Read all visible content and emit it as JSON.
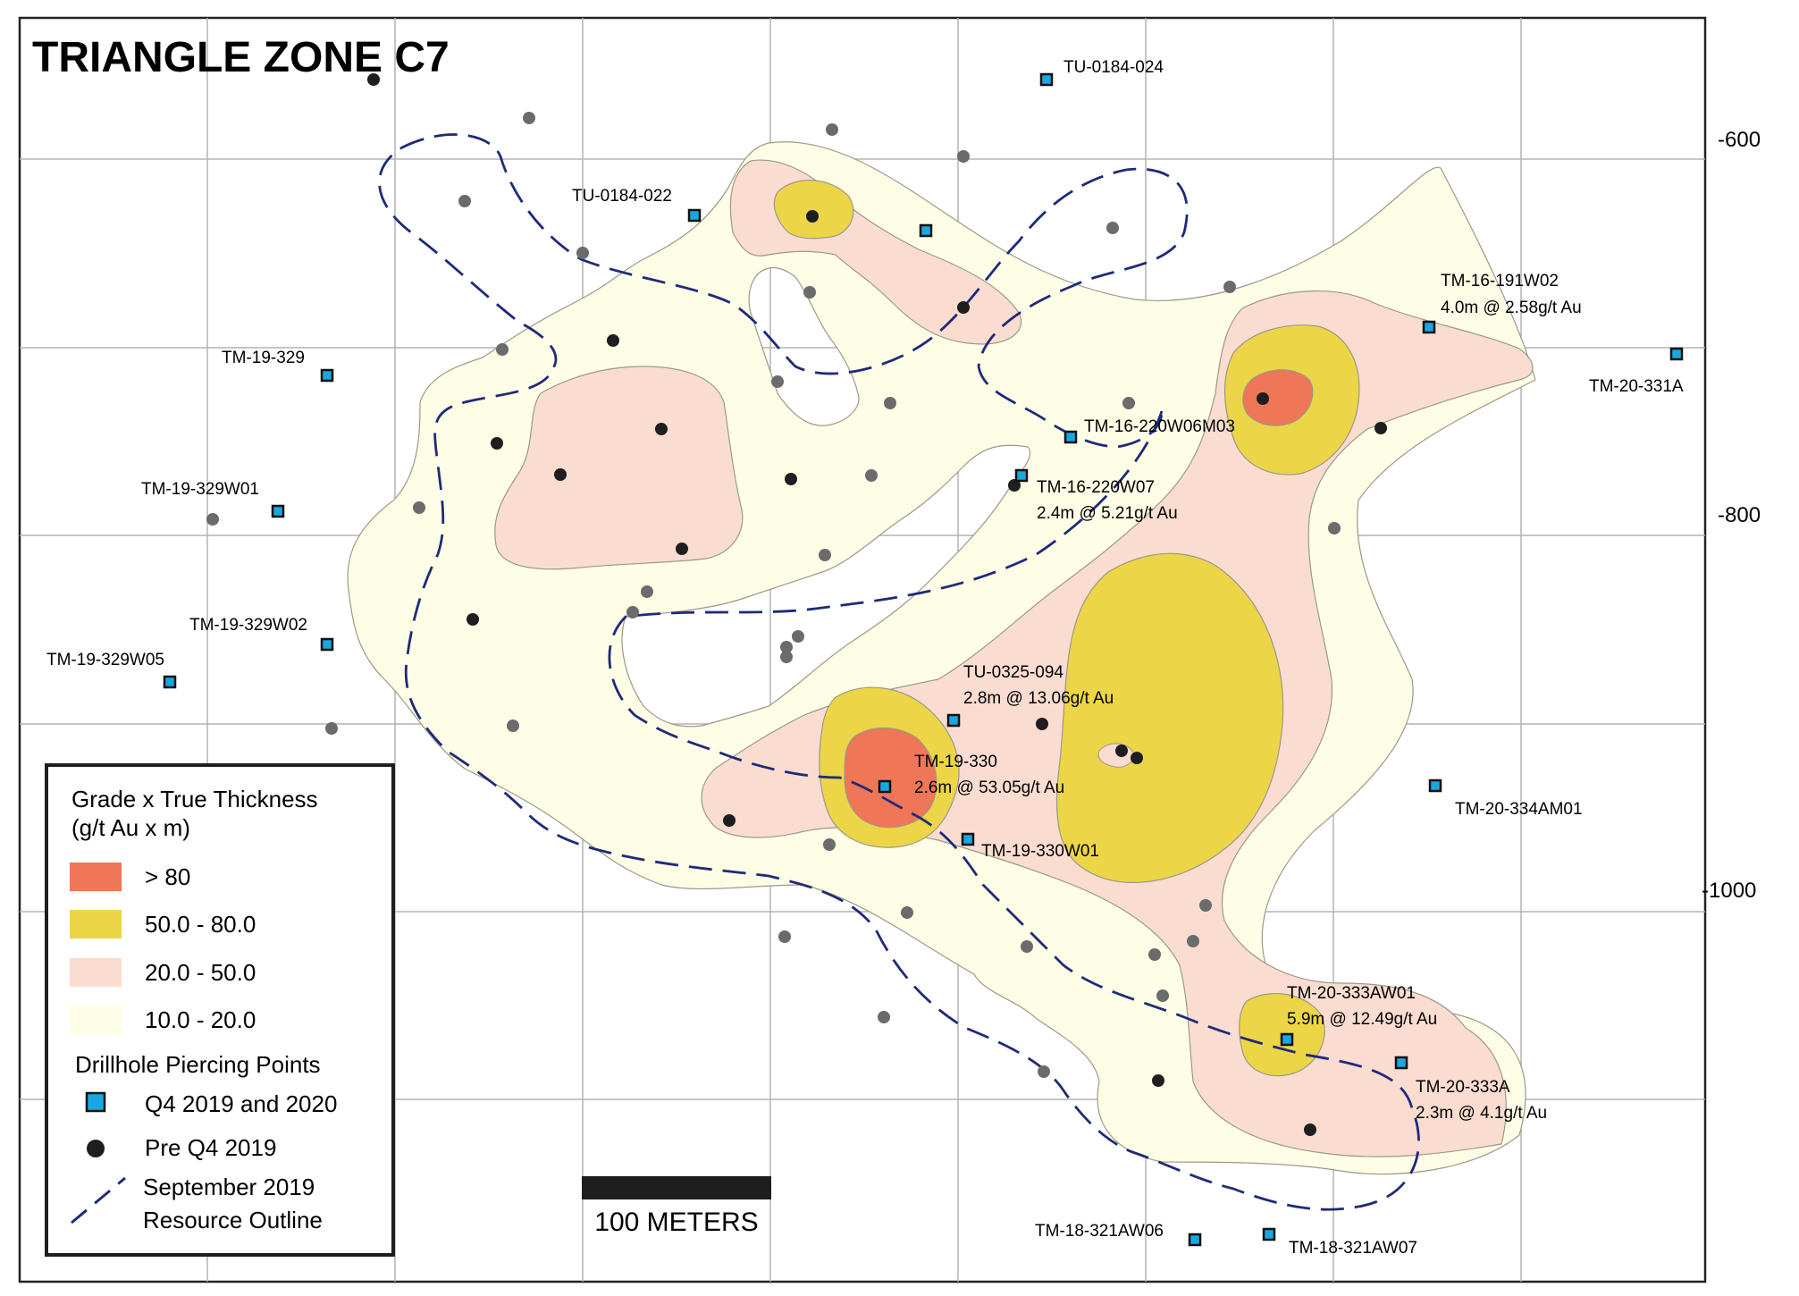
{
  "title": "TRIANGLE ZONE C7",
  "elevations": [
    "-600",
    "-800",
    "-1000"
  ],
  "scale_bar_label": "100 METERS",
  "legend": {
    "title_line1": "Grade x True Thickness",
    "title_line2": "(g/t Au x m)",
    "grades": [
      {
        "label": "> 80",
        "color": "#ef7656"
      },
      {
        "label": "50.0 - 80.0",
        "color": "#ecd546"
      },
      {
        "label": "20.0 - 50.0",
        "color": "#fbdcd0"
      },
      {
        "label": "10.0 - 20.0",
        "color": "#fefde6"
      }
    ],
    "points_title": "Drillhole Piercing Points",
    "q4_label": "Q4 2019 and 2020",
    "pre_label": "Pre Q4 2019",
    "outline_line1": "September 2019",
    "outline_line2": "Resource Outline"
  },
  "colors": {
    "q4_marker": "#1aa7e0",
    "pre_marker": "#1e1e1e",
    "older_marker": "#6b6b6b",
    "outline": "#1f2a7a",
    "grid": "#b3b3b3"
  },
  "drillholes": [
    {
      "id": "TU-0184-024",
      "result": ""
    },
    {
      "id": "TU-0184-022",
      "result": ""
    },
    {
      "id": "TM-16-191W02",
      "result": "4.0m @ 2.58g/t Au"
    },
    {
      "id": "TM-20-331A",
      "result": ""
    },
    {
      "id": "TM-19-329",
      "result": ""
    },
    {
      "id": "TM-16-220W06M03",
      "result": ""
    },
    {
      "id": "TM-16-220W07",
      "result": "2.4m @ 5.21g/t Au"
    },
    {
      "id": "TM-19-329W01",
      "result": ""
    },
    {
      "id": "TM-19-329W02",
      "result": ""
    },
    {
      "id": "TM-19-329W05",
      "result": ""
    },
    {
      "id": "TU-0325-094",
      "result": "2.8m @ 13.06g/t Au"
    },
    {
      "id": "TM-19-330",
      "result": "2.6m @ 53.05g/t Au"
    },
    {
      "id": "TM-20-334AM01",
      "result": ""
    },
    {
      "id": "TM-19-330W01",
      "result": ""
    },
    {
      "id": "TM-20-333AW01",
      "result": "5.9m @ 12.49g/t Au"
    },
    {
      "id": "TM-20-333A",
      "result": "2.3m @ 4.1g/t Au"
    },
    {
      "id": "TM-18-321AW06",
      "result": ""
    },
    {
      "id": "TM-18-321AW07",
      "result": ""
    }
  ]
}
